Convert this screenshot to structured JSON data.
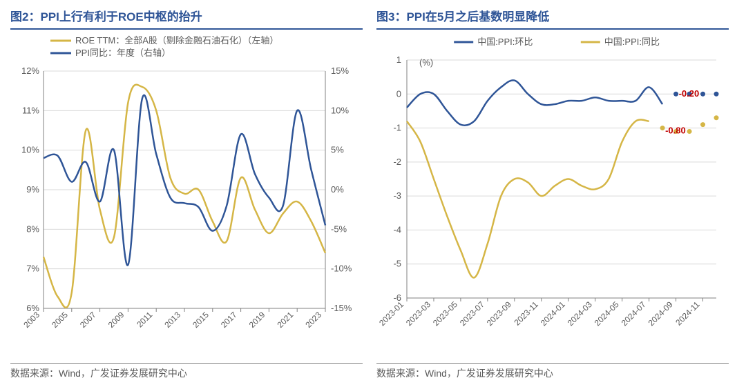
{
  "chart2": {
    "title": "图2：PPI上行有利于ROE中枢的抬升",
    "source": "数据来源：Wind，广发证券发展研究中心",
    "type": "line-dual-axis",
    "legend": [
      {
        "label": "ROE TTM：全部A股（剔除金融石油石化）（左轴）",
        "color": "#d5b646"
      },
      {
        "label": "PPI同比：年度（右轴）",
        "color": "#2f5597"
      }
    ],
    "left_axis": {
      "min": 6,
      "max": 12,
      "step": 1,
      "suffix": "%"
    },
    "right_axis": {
      "min": -15,
      "max": 15,
      "step": 5,
      "suffix": "%"
    },
    "x_labels": [
      "2003",
      "2005",
      "2007",
      "2009",
      "2011",
      "2013",
      "2015",
      "2017",
      "2019",
      "2021",
      "2023"
    ],
    "x_years": [
      2003,
      2004,
      2005,
      2006,
      2007,
      2008,
      2009,
      2010,
      2011,
      2012,
      2013,
      2014,
      2015,
      2016,
      2017,
      2018,
      2019,
      2020,
      2021,
      2022,
      2023
    ],
    "roe_values": [
      7.3,
      6.3,
      6.4,
      10.5,
      8.5,
      7.8,
      11.2,
      11.6,
      11.0,
      9.3,
      8.9,
      9.0,
      8.2,
      7.7,
      9.3,
      8.5,
      7.9,
      8.4,
      8.7,
      8.2,
      7.4
    ],
    "ppi_values": [
      4.0,
      4.3,
      1.0,
      3.5,
      -1.5,
      5.0,
      -9.5,
      11.5,
      4.5,
      -1.0,
      -1.7,
      -2.2,
      -5.2,
      -2.0,
      7.0,
      2.0,
      -1.0,
      -2.0,
      10.0,
      2.5,
      -4.5
    ],
    "colors": {
      "blue": "#2f5597",
      "yellow": "#d5b646",
      "grid": "#d9d9d9",
      "axis": "#808080",
      "text": "#595959"
    },
    "title_fontsize": 17,
    "label_fontsize": 13,
    "line_width": 2.5,
    "background": "#ffffff"
  },
  "chart3": {
    "title": "图3：PPI在5月之后基数明显降低",
    "source": "数据来源：Wind，广发证券发展研究中心",
    "type": "line",
    "ylabel": "(%)",
    "legend": [
      {
        "label": "中国:PPI:环比",
        "color": "#2f5597"
      },
      {
        "label": "中国:PPI:同比",
        "color": "#d5b646"
      }
    ],
    "y_axis": {
      "min": -6,
      "max": 1,
      "step": 1
    },
    "x_labels": [
      "2023-01",
      "2023-03",
      "2023-05",
      "2023-07",
      "2023-09",
      "2023-11",
      "2024-01",
      "2024-03",
      "2024-05",
      "2024-07",
      "2024-09",
      "2024-11"
    ],
    "months": [
      "2023-01",
      "2023-02",
      "2023-03",
      "2023-04",
      "2023-05",
      "2023-06",
      "2023-07",
      "2023-08",
      "2023-09",
      "2023-10",
      "2023-11",
      "2023-12",
      "2024-01",
      "2024-02",
      "2024-03",
      "2024-04",
      "2024-05",
      "2024-06",
      "2024-07",
      "2024-08",
      "2024-09",
      "2024-10",
      "2024-11",
      "2024-12"
    ],
    "mom_values": [
      -0.4,
      0.0,
      0.0,
      -0.5,
      -0.9,
      -0.8,
      -0.2,
      0.2,
      0.4,
      0.0,
      -0.3,
      -0.3,
      -0.2,
      -0.2,
      -0.1,
      -0.2,
      -0.2,
      -0.2,
      0.2,
      -0.3
    ],
    "mom_forecast": [
      0.0,
      0.0,
      0.0,
      0.0
    ],
    "yoy_values": [
      -0.8,
      -1.4,
      -2.5,
      -3.6,
      -4.6,
      -5.4,
      -4.4,
      -3.0,
      -2.5,
      -2.6,
      -3.0,
      -2.7,
      -2.5,
      -2.7,
      -2.8,
      -2.5,
      -1.4,
      -0.8,
      -0.8
    ],
    "yoy_forecast": [
      -1.0,
      -1.1,
      -1.1,
      -0.9,
      -0.7
    ],
    "annotations": [
      {
        "text": "-0.20",
        "x_idx": 20,
        "y": -0.2,
        "color": "#c00000"
      },
      {
        "text": "-0.80",
        "x_idx": 19,
        "y": -0.8,
        "color": "#c00000"
      }
    ],
    "colors": {
      "blue": "#2f5597",
      "yellow": "#d5b646",
      "grid": "#d9d9d9",
      "axis": "#808080",
      "text": "#595959",
      "annot": "#c00000"
    },
    "title_fontsize": 17,
    "label_fontsize": 13,
    "line_width": 2.5,
    "background": "#ffffff"
  }
}
